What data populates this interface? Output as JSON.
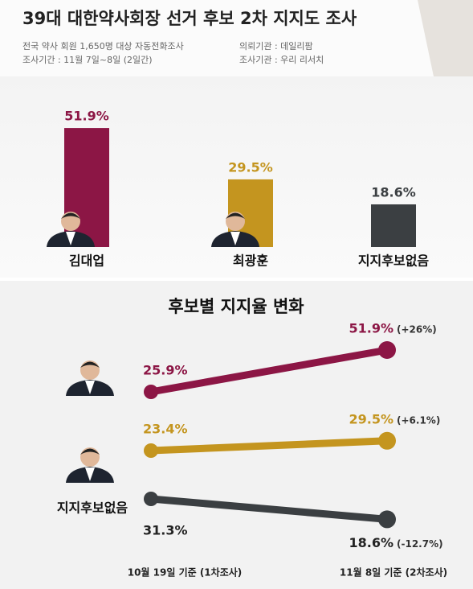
{
  "header": {
    "title": "39대 대한약사회장 선거 후보 2차 지지도 조사",
    "info": [
      "전국 약사 회원 1,650명 대상 자동전화조사",
      "조사기간 : 11월 7일~8일 (2일간)",
      "의뢰기관 : 데일리팜",
      "조사기관 : 우리 리서치"
    ]
  },
  "chart_data": [
    {
      "type": "bar",
      "categories": [
        "김대업",
        "최광훈",
        "지지후보없음"
      ],
      "values": [
        51.9,
        29.5,
        18.6
      ],
      "value_labels": [
        "51.9%",
        "29.5%",
        "18.6%"
      ],
      "colors": [
        "#8c1645",
        "#c4951f",
        "#3b3f42"
      ]
    },
    {
      "type": "line",
      "title": "후보별 지지율 변화",
      "categories": [
        "10월 19일 기준 (1차조사)",
        "11월 8일 기준 (2차조사)"
      ],
      "series": [
        {
          "color": "#8c1645",
          "values": [
            25.9,
            51.9
          ],
          "value_labels": [
            "25.9%",
            "51.9%"
          ],
          "annotation": "(+26%)"
        },
        {
          "color": "#c4951f",
          "values": [
            23.4,
            29.5
          ],
          "value_labels": [
            "23.4%",
            "29.5%"
          ],
          "annotation": "(+6.1%)"
        },
        {
          "name": "지지후보없음",
          "color": "#3b3f42",
          "values": [
            31.3,
            18.6
          ],
          "value_labels": [
            "31.3%",
            "18.6%"
          ],
          "annotation": "(-12.7%)"
        }
      ]
    }
  ]
}
